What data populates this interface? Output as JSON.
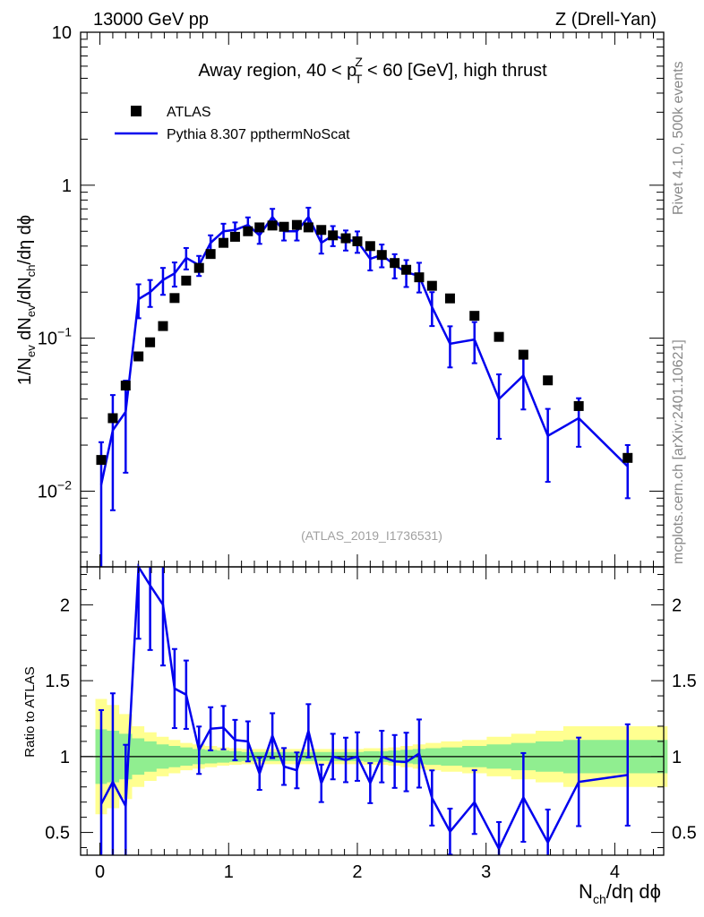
{
  "header": {
    "left": "13000 GeV pp",
    "right": "Z (Drell-Yan)"
  },
  "side": {
    "rivet": "Rivet 4.1.0,  500k events",
    "mcplots": "mcplots.cern.ch [arXiv:2401.10621]"
  },
  "colors": {
    "data": "#000000",
    "mc": "#0000ee",
    "band_inner": "#90ee90",
    "band_outer": "#ffff90"
  },
  "chart_data": {
    "type": "line",
    "title_main": "Away region, 40 < p",
    "title_sup": "Z",
    "title_sub": "T",
    "title_rest": " < 60 [GeV], high thrust",
    "watermark": "(ATLAS_2019_I1736531)",
    "ylabel": {
      "a": "1/N",
      "a_sub": "ev",
      "b": " dN",
      "b_sub": "ev",
      "c": "/dN",
      "c_sub": "ch",
      "d": "/dη dϕ"
    },
    "xlabel": {
      "a": "N",
      "a_sub": "ch",
      "b": "/dη dϕ"
    },
    "ratio_ylabel": "Ratio to ATLAS",
    "xlim": [
      -0.15,
      4.38
    ],
    "ylim": [
      0.0032,
      10
    ],
    "ratio_ylim": [
      0.35,
      2.25
    ],
    "x_ticks": [
      "0",
      "1",
      "2",
      "3",
      "4"
    ],
    "y_ticks": [
      {
        "base": "10",
        "exp": "",
        "value": 10
      },
      {
        "base": "1",
        "exp": "",
        "value": 1
      },
      {
        "base": "10",
        "exp": "−1",
        "value": 0.1
      },
      {
        "base": "10",
        "exp": "−2",
        "value": 0.01
      }
    ],
    "ratio_ticks": [
      "2",
      "1.5",
      "1",
      "0.5"
    ],
    "legend": {
      "data_label": "ATLAS",
      "mc_label": "Pythia 8.307 ppthermNoScat"
    },
    "x": [
      0.01,
      0.1,
      0.2,
      0.3,
      0.39,
      0.49,
      0.58,
      0.67,
      0.77,
      0.86,
      0.96,
      1.05,
      1.15,
      1.24,
      1.34,
      1.43,
      1.53,
      1.62,
      1.72,
      1.81,
      1.91,
      2.0,
      2.1,
      2.19,
      2.29,
      2.38,
      2.48,
      2.58,
      2.72,
      2.91,
      3.1,
      3.29,
      3.48,
      3.72,
      4.1
    ],
    "data": [
      0.016,
      0.03,
      0.049,
      0.076,
      0.094,
      0.12,
      0.183,
      0.238,
      0.288,
      0.355,
      0.42,
      0.46,
      0.5,
      0.53,
      0.545,
      0.535,
      0.55,
      0.53,
      0.51,
      0.47,
      0.45,
      0.43,
      0.4,
      0.35,
      0.31,
      0.28,
      0.25,
      0.22,
      0.182,
      0.14,
      0.102,
      0.078,
      0.053,
      0.036,
      0.0165
    ],
    "mc": [
      0.011,
      0.025,
      0.033,
      0.18,
      0.2,
      0.24,
      0.265,
      0.335,
      0.3,
      0.42,
      0.5,
      0.51,
      0.55,
      0.47,
      0.62,
      0.5,
      0.5,
      0.62,
      0.42,
      0.47,
      0.44,
      0.43,
      0.33,
      0.35,
      0.3,
      0.27,
      0.255,
      0.16,
      0.092,
      0.098,
      0.04,
      0.057,
      0.023,
      0.03,
      0.0145
    ],
    "mc_err_rel": [
      0.9,
      0.7,
      0.6,
      0.25,
      0.2,
      0.2,
      0.18,
      0.16,
      0.15,
      0.12,
      0.12,
      0.12,
      0.12,
      0.12,
      0.13,
      0.13,
      0.13,
      0.15,
      0.15,
      0.15,
      0.15,
      0.16,
      0.16,
      0.17,
      0.18,
      0.2,
      0.22,
      0.25,
      0.3,
      0.3,
      0.45,
      0.4,
      0.5,
      0.35,
      0.38
    ],
    "band_inner": [
      0.18,
      0.17,
      0.15,
      0.12,
      0.1,
      0.08,
      0.07,
      0.06,
      0.05,
      0.045,
      0.04,
      0.035,
      0.03,
      0.03,
      0.03,
      0.03,
      0.03,
      0.03,
      0.03,
      0.03,
      0.03,
      0.03,
      0.035,
      0.035,
      0.04,
      0.045,
      0.05,
      0.055,
      0.06,
      0.07,
      0.08,
      0.09,
      0.1,
      0.11,
      0.11
    ],
    "band_outer": [
      0.38,
      0.34,
      0.28,
      0.2,
      0.16,
      0.13,
      0.11,
      0.09,
      0.08,
      0.07,
      0.06,
      0.055,
      0.05,
      0.05,
      0.05,
      0.05,
      0.05,
      0.05,
      0.05,
      0.05,
      0.05,
      0.05,
      0.055,
      0.055,
      0.06,
      0.07,
      0.08,
      0.09,
      0.1,
      0.11,
      0.13,
      0.15,
      0.17,
      0.2,
      0.2
    ]
  }
}
